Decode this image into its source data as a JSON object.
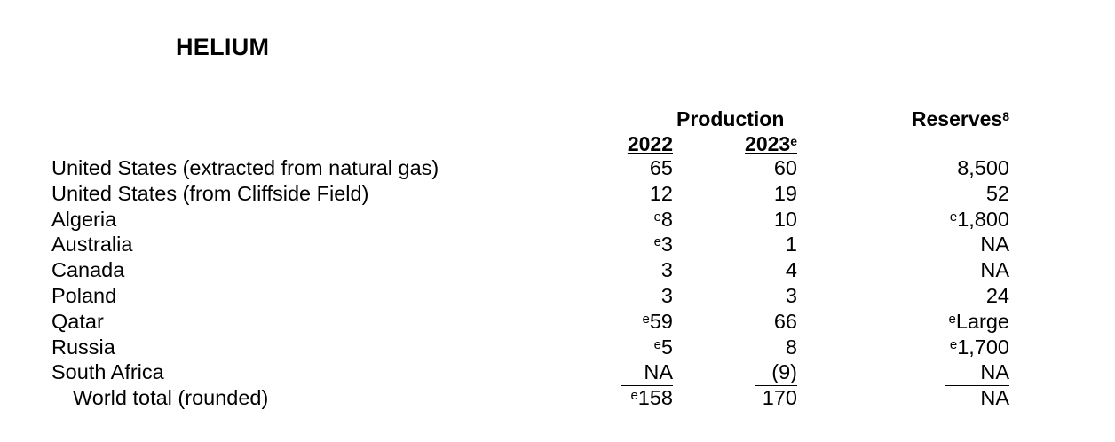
{
  "title": "HELIUM",
  "headers": {
    "production": "Production",
    "year_2022": "2022",
    "year_2023": "2023",
    "year_2023_note": "e",
    "reserves": "Reserves",
    "reserves_note": "8"
  },
  "rows": [
    {
      "country": "United States (extracted from natural gas)",
      "p2022": "65",
      "p2022_e": "",
      "p2023": "60",
      "reserves": "8,500",
      "reserves_e": ""
    },
    {
      "country": "United States (from Cliffside Field)",
      "p2022": "12",
      "p2022_e": "",
      "p2023": "19",
      "reserves": "52",
      "reserves_e": ""
    },
    {
      "country": "Algeria",
      "p2022": "8",
      "p2022_e": "e",
      "p2023": "10",
      "reserves": "1,800",
      "reserves_e": "e"
    },
    {
      "country": "Australia",
      "p2022": "3",
      "p2022_e": "e",
      "p2023": "1",
      "reserves": "NA",
      "reserves_e": ""
    },
    {
      "country": "Canada",
      "p2022": "3",
      "p2022_e": "",
      "p2023": "4",
      "reserves": "NA",
      "reserves_e": ""
    },
    {
      "country": "Poland",
      "p2022": "3",
      "p2022_e": "",
      "p2023": "3",
      "reserves": "24",
      "reserves_e": ""
    },
    {
      "country": "Qatar",
      "p2022": "59",
      "p2022_e": "e",
      "p2023": "66",
      "reserves": "Large",
      "reserves_e": "e"
    },
    {
      "country": "Russia",
      "p2022": "5",
      "p2022_e": "e",
      "p2023": "8",
      "reserves": "1,700",
      "reserves_e": "e"
    },
    {
      "country": "South Africa",
      "p2022": "NA",
      "p2022_e": "",
      "p2023": "(9)",
      "reserves": "NA",
      "reserves_e": ""
    }
  ],
  "total": {
    "country": "World total (rounded)",
    "p2022": "158",
    "p2022_e": "e",
    "p2023": "170",
    "reserves": "NA",
    "reserves_e": ""
  }
}
